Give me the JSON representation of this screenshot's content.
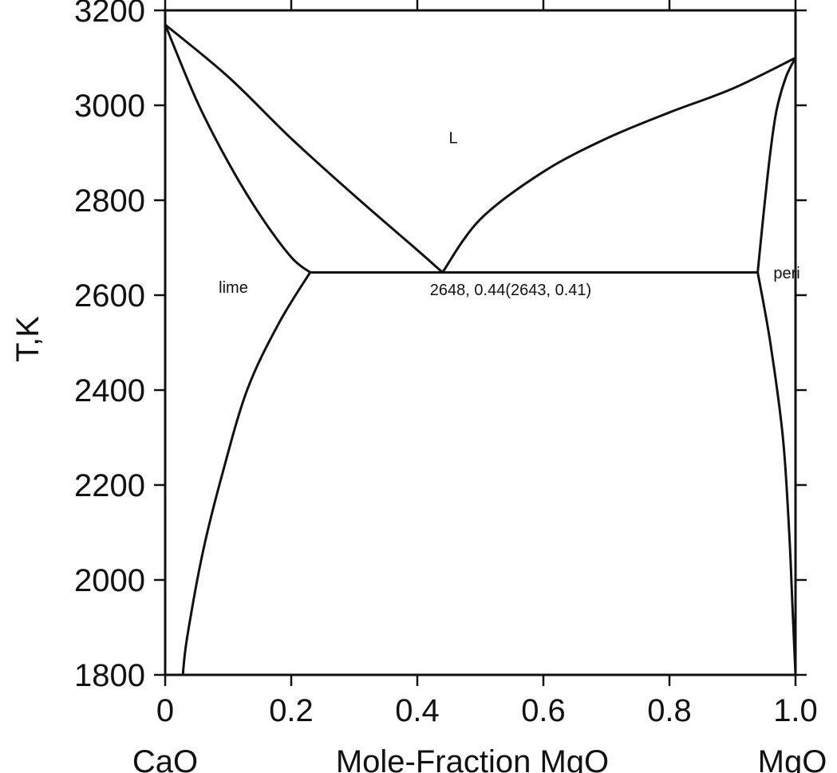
{
  "chart_data": {
    "type": "line",
    "title": "",
    "xlabel": "Mole-Fraction MgO",
    "ylabel": "T,K",
    "xlim": [
      0,
      1.0
    ],
    "ylim": [
      1800,
      3200
    ],
    "x_ticks": [
      "0",
      "0.2",
      "0.4",
      "0.6",
      "0.8",
      "1.0"
    ],
    "x_tick_values": [
      0,
      0.2,
      0.4,
      0.6,
      0.8,
      1.0
    ],
    "y_ticks": [
      "1800",
      "2000",
      "2200",
      "2400",
      "2600",
      "2800",
      "3000",
      "3200"
    ],
    "y_tick_values": [
      1800,
      2000,
      2200,
      2400,
      2600,
      2800,
      3000,
      3200
    ],
    "x_end_labels": {
      "left": "CaO",
      "right": "MgO"
    },
    "grid": false,
    "legend": "none",
    "series": [
      {
        "values": [
          [
            0,
            3170
          ],
          [
            0.05,
            3010
          ],
          [
            0.1,
            2880
          ],
          [
            0.15,
            2770
          ],
          [
            0.2,
            2680
          ],
          [
            0.23,
            2648
          ]
        ]
      },
      {
        "values": [
          [
            0,
            3170
          ],
          [
            0.1,
            3060
          ],
          [
            0.2,
            2930
          ],
          [
            0.3,
            2810
          ],
          [
            0.4,
            2695
          ],
          [
            0.44,
            2648
          ]
        ]
      },
      {
        "values": [
          [
            0.44,
            2648
          ],
          [
            0.5,
            2760
          ],
          [
            0.6,
            2860
          ],
          [
            0.7,
            2930
          ],
          [
            0.8,
            2985
          ],
          [
            0.9,
            3035
          ],
          [
            1.0,
            3100
          ]
        ]
      },
      {
        "values": [
          [
            0.94,
            2648
          ],
          [
            0.95,
            2780
          ],
          [
            0.96,
            2900
          ],
          [
            0.97,
            2990
          ],
          [
            0.985,
            3060
          ],
          [
            1.0,
            3100
          ]
        ]
      },
      {
        "values": [
          [
            0.23,
            2648
          ],
          [
            0.41,
            2648
          ],
          [
            0.44,
            2648
          ],
          [
            0.94,
            2648
          ]
        ]
      },
      {
        "values": [
          [
            0.23,
            2648
          ],
          [
            0.18,
            2540
          ],
          [
            0.13,
            2400
          ],
          [
            0.09,
            2220
          ],
          [
            0.06,
            2060
          ],
          [
            0.035,
            1880
          ],
          [
            0.028,
            1800
          ]
        ]
      },
      {
        "values": [
          [
            0.94,
            2648
          ],
          [
            0.96,
            2500
          ],
          [
            0.98,
            2300
          ],
          [
            0.99,
            2100
          ],
          [
            0.995,
            1950
          ],
          [
            1.0,
            1800
          ]
        ]
      }
    ],
    "annotations": [
      {
        "text": "L",
        "x": 0.45,
        "y": 2920
      },
      {
        "text": "lime",
        "x": 0.085,
        "y": 2605
      },
      {
        "text": "2648, 0.44(2643, 0.41)",
        "x": 0.42,
        "y": 2600
      },
      {
        "text": "peri",
        "x": 0.965,
        "y": 2635
      }
    ]
  }
}
